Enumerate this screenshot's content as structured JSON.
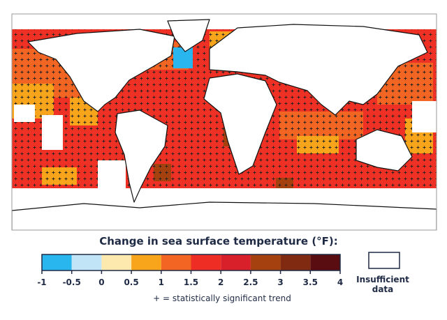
{
  "legend": {
    "title": "Change in sea surface temperature (°F):",
    "ticks": [
      -1,
      -0.5,
      0,
      0.5,
      1,
      1.5,
      2,
      2.5,
      3,
      3.5,
      4
    ],
    "colors": [
      "#29b6ef",
      "#c2e4f7",
      "#fde8ae",
      "#f9a51b",
      "#f36523",
      "#ee2e24",
      "#d8202a",
      "#a4410e",
      "#802a12",
      "#5a0d10"
    ]
  },
  "insufficient_data": {
    "lines": [
      "Insufficient",
      "data"
    ]
  },
  "note": "+ = statistically significant trend"
}
